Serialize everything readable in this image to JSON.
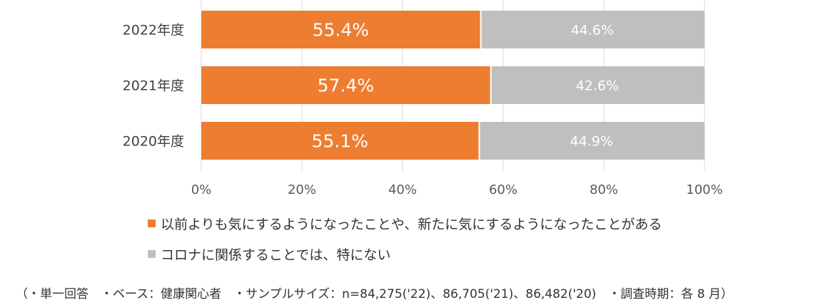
{
  "chart_data": {
    "type": "bar",
    "orientation": "horizontal",
    "stacked": true,
    "categories": [
      "2022年度",
      "2021年度",
      "2020年度"
    ],
    "series": [
      {
        "name": "以前よりも気にするようになったことや、新たに気にするようになったことがある",
        "values": [
          55.4,
          57.4,
          55.1
        ],
        "labels": [
          "55.4%",
          "57.4%",
          "55.1%"
        ],
        "color": "#ED7D31"
      },
      {
        "name": "コロナに関係することでは、特にない",
        "values": [
          44.6,
          42.6,
          44.9
        ],
        "labels": [
          "44.6%",
          "42.6%",
          "44.9%"
        ],
        "color": "#BFBFBF"
      }
    ],
    "xlim": [
      0,
      100
    ],
    "xticks": [
      0,
      20,
      40,
      60,
      80,
      100
    ],
    "xtick_labels": [
      "0%",
      "20%",
      "40%",
      "60%",
      "80%",
      "100%"
    ],
    "grid": true,
    "legend_position": "bottom"
  },
  "footnote": "（・単一回答　・ベース：健康関心者　・サンプルサイズ：n=84,275('22)、86,705('21)、86,482('20)　・調査時期：各 8 月）"
}
